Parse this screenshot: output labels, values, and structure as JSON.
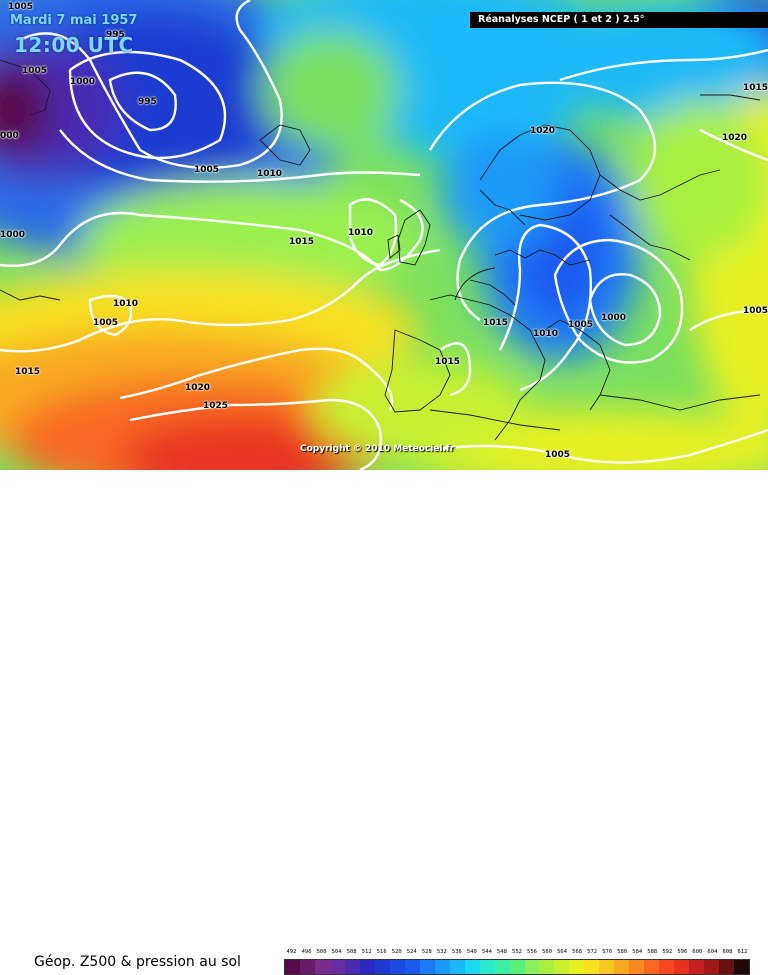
{
  "header": {
    "date_line": "Mardi 7 mai 1957",
    "time_line": "12:00 UTC",
    "reanalysis": "Réanalyses NCEP ( 1 et 2 ) 2.5°"
  },
  "copyright": "Copyright © 2010 Meteociel.fr",
  "isobars": [
    {
      "label": "1005"
    },
    {
      "label": "995"
    },
    {
      "label": "1005"
    },
    {
      "label": "1000"
    },
    {
      "label": "000"
    },
    {
      "label": "995"
    },
    {
      "label": "1005"
    },
    {
      "label": "1010"
    },
    {
      "label": "1000"
    },
    {
      "label": "1015"
    },
    {
      "label": "1010"
    },
    {
      "label": "1010"
    },
    {
      "label": "1005"
    },
    {
      "label": "1015"
    },
    {
      "label": "1020"
    },
    {
      "label": "1025"
    },
    {
      "label": "1015"
    },
    {
      "label": "1020"
    },
    {
      "label": "1015"
    },
    {
      "label": "1020"
    },
    {
      "label": "1015"
    },
    {
      "label": "1010"
    },
    {
      "label": "1005"
    },
    {
      "label": "1000"
    },
    {
      "label": "1005"
    },
    {
      "label": "1005"
    }
  ],
  "legend": {
    "title": "Géop. Z500 & pression au sol",
    "ticks": [
      "492",
      "496",
      "500",
      "504",
      "508",
      "512",
      "516",
      "520",
      "524",
      "528",
      "532",
      "536",
      "540",
      "544",
      "548",
      "552",
      "556",
      "560",
      "564",
      "568",
      "572",
      "576",
      "580",
      "584",
      "588",
      "592",
      "596",
      "600",
      "604",
      "608",
      "612"
    ],
    "colors": [
      "#5a0a4a",
      "#6a1a6a",
      "#7a2a8a",
      "#6a2aa0",
      "#4a2ab0",
      "#2a2ac0",
      "#1a3ad0",
      "#1a4ae0",
      "#1a5af0",
      "#1a7af8",
      "#1a9af8",
      "#1abaf8",
      "#1ad8f0",
      "#2ae8d0",
      "#3af0a0",
      "#5af080",
      "#8af060",
      "#a8f040",
      "#c8f030",
      "#e8f020",
      "#f8e020",
      "#f8c820",
      "#f8a820",
      "#f88820",
      "#f86820",
      "#f84820",
      "#e83020",
      "#c82020",
      "#a01818",
      "#681010",
      "#200808"
    ]
  }
}
